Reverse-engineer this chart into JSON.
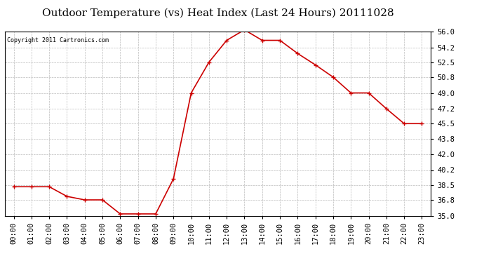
{
  "title": "Outdoor Temperature (vs) Heat Index (Last 24 Hours) 20111028",
  "copyright": "Copyright 2011 Cartronics.com",
  "line_color": "#cc0000",
  "background_color": "#ffffff",
  "plot_bg_color": "#ffffff",
  "grid_color": "#bbbbbb",
  "hours": [
    0,
    1,
    2,
    3,
    4,
    5,
    6,
    7,
    8,
    9,
    10,
    11,
    12,
    13,
    14,
    15,
    16,
    17,
    18,
    19,
    20,
    21,
    22,
    23
  ],
  "x_labels": [
    "00:00",
    "01:00",
    "02:00",
    "03:00",
    "04:00",
    "05:00",
    "06:00",
    "07:00",
    "08:00",
    "09:00",
    "10:00",
    "11:00",
    "12:00",
    "13:00",
    "14:00",
    "15:00",
    "16:00",
    "17:00",
    "18:00",
    "19:00",
    "20:00",
    "21:00",
    "22:00",
    "23:00"
  ],
  "values": [
    38.3,
    38.3,
    38.3,
    37.2,
    36.8,
    36.8,
    35.2,
    35.2,
    35.2,
    39.2,
    49.0,
    52.5,
    55.0,
    56.2,
    55.0,
    55.0,
    53.5,
    52.2,
    50.8,
    49.0,
    49.0,
    47.2,
    45.5,
    45.5
  ],
  "ylim_min": 35.0,
  "ylim_max": 56.0,
  "yticks": [
    35.0,
    36.8,
    38.5,
    40.2,
    42.0,
    43.8,
    45.5,
    47.2,
    49.0,
    50.8,
    52.5,
    54.2,
    56.0
  ],
  "title_fontsize": 11,
  "copyright_fontsize": 6,
  "tick_fontsize": 7.5,
  "marker": "+",
  "marker_size": 5,
  "marker_linewidth": 1.0,
  "linewidth": 1.2
}
